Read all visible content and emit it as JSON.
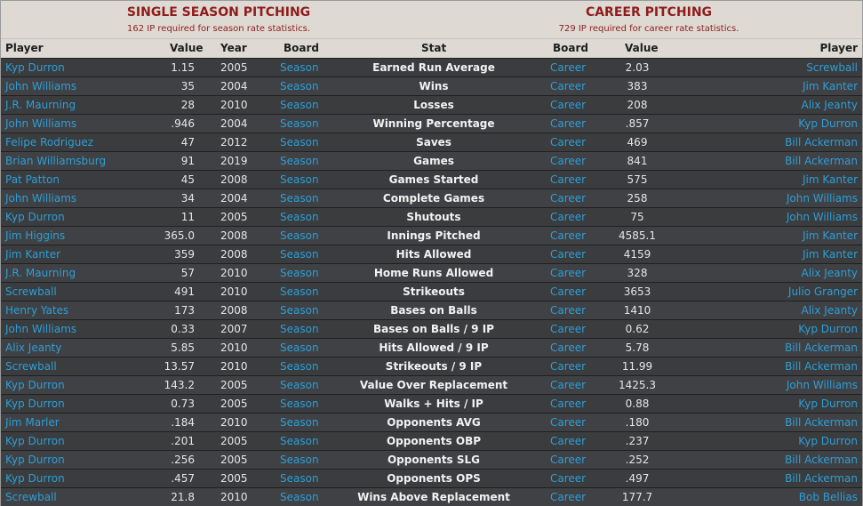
{
  "single_season": {
    "title": "SINGLE SEASON PITCHING",
    "subtitle": "162 IP required for season rate statistics."
  },
  "career": {
    "title": "CAREER PITCHING",
    "subtitle": "729 IP required for career rate statistics."
  },
  "columns": {
    "player": "Player",
    "value": "Value",
    "year": "Year",
    "board": "Board",
    "stat": "Stat",
    "career_board": "Board",
    "career_value": "Value",
    "career_player": "Player"
  },
  "colors": {
    "link": "#2b9fd8",
    "banner_bg": "#dedad3",
    "banner_text": "#8e1c1c",
    "row_bg": "#3b3c3e"
  },
  "rows": [
    {
      "player": "Kyp Durron",
      "value": "1.15",
      "year": "2005",
      "board": "Season",
      "stat": "Earned Run Average",
      "career_board": "Career",
      "career_value": "2.03",
      "career_player": "Screwball"
    },
    {
      "player": "John Williams",
      "value": "35",
      "year": "2004",
      "board": "Season",
      "stat": "Wins",
      "career_board": "Career",
      "career_value": "383",
      "career_player": "Jim Kanter"
    },
    {
      "player": "J.R. Maurning",
      "value": "28",
      "year": "2010",
      "board": "Season",
      "stat": "Losses",
      "career_board": "Career",
      "career_value": "208",
      "career_player": "Alix Jeanty"
    },
    {
      "player": "John Williams",
      "value": ".946",
      "year": "2004",
      "board": "Season",
      "stat": "Winning Percentage",
      "career_board": "Career",
      "career_value": ".857",
      "career_player": "Kyp Durron"
    },
    {
      "player": "Felipe Rodriguez",
      "value": "47",
      "year": "2012",
      "board": "Season",
      "stat": "Saves",
      "career_board": "Career",
      "career_value": "469",
      "career_player": "Bill Ackerman"
    },
    {
      "player": "Brian Williamsburg",
      "value": "91",
      "year": "2019",
      "board": "Season",
      "stat": "Games",
      "career_board": "Career",
      "career_value": "841",
      "career_player": "Bill Ackerman"
    },
    {
      "player": "Pat Patton",
      "value": "45",
      "year": "2008",
      "board": "Season",
      "stat": "Games Started",
      "career_board": "Career",
      "career_value": "575",
      "career_player": "Jim Kanter"
    },
    {
      "player": "John Williams",
      "value": "34",
      "year": "2004",
      "board": "Season",
      "stat": "Complete Games",
      "career_board": "Career",
      "career_value": "258",
      "career_player": "John Williams"
    },
    {
      "player": "Kyp Durron",
      "value": "11",
      "year": "2005",
      "board": "Season",
      "stat": "Shutouts",
      "career_board": "Career",
      "career_value": "75",
      "career_player": "John Williams"
    },
    {
      "player": "Jim Higgins",
      "value": "365.0",
      "year": "2008",
      "board": "Season",
      "stat": "Innings Pitched",
      "career_board": "Career",
      "career_value": "4585.1",
      "career_player": "Jim Kanter"
    },
    {
      "player": "Jim Kanter",
      "value": "359",
      "year": "2008",
      "board": "Season",
      "stat": "Hits Allowed",
      "career_board": "Career",
      "career_value": "4159",
      "career_player": "Jim Kanter"
    },
    {
      "player": "J.R. Maurning",
      "value": "57",
      "year": "2010",
      "board": "Season",
      "stat": "Home Runs Allowed",
      "career_board": "Career",
      "career_value": "328",
      "career_player": "Alix Jeanty"
    },
    {
      "player": "Screwball",
      "value": "491",
      "year": "2010",
      "board": "Season",
      "stat": "Strikeouts",
      "career_board": "Career",
      "career_value": "3653",
      "career_player": "Julio Granger"
    },
    {
      "player": "Henry Yates",
      "value": "173",
      "year": "2008",
      "board": "Season",
      "stat": "Bases on Balls",
      "career_board": "Career",
      "career_value": "1410",
      "career_player": "Alix Jeanty"
    },
    {
      "player": "John Williams",
      "value": "0.33",
      "year": "2007",
      "board": "Season",
      "stat": "Bases on Balls / 9 IP",
      "career_board": "Career",
      "career_value": "0.62",
      "career_player": "Kyp Durron"
    },
    {
      "player": "Alix Jeanty",
      "value": "5.85",
      "year": "2010",
      "board": "Season",
      "stat": "Hits Allowed / 9 IP",
      "career_board": "Career",
      "career_value": "5.78",
      "career_player": "Bill Ackerman"
    },
    {
      "player": "Screwball",
      "value": "13.57",
      "year": "2010",
      "board": "Season",
      "stat": "Strikeouts / 9 IP",
      "career_board": "Career",
      "career_value": "11.99",
      "career_player": "Bill Ackerman"
    },
    {
      "player": "Kyp Durron",
      "value": "143.2",
      "year": "2005",
      "board": "Season",
      "stat": "Value Over Replacement",
      "career_board": "Career",
      "career_value": "1425.3",
      "career_player": "John Williams"
    },
    {
      "player": "Kyp Durron",
      "value": "0.73",
      "year": "2005",
      "board": "Season",
      "stat": "Walks + Hits / IP",
      "career_board": "Career",
      "career_value": "0.88",
      "career_player": "Kyp Durron"
    },
    {
      "player": "Jim Marler",
      "value": ".184",
      "year": "2010",
      "board": "Season",
      "stat": "Opponents AVG",
      "career_board": "Career",
      "career_value": ".180",
      "career_player": "Bill Ackerman"
    },
    {
      "player": "Kyp Durron",
      "value": ".201",
      "year": "2005",
      "board": "Season",
      "stat": "Opponents OBP",
      "career_board": "Career",
      "career_value": ".237",
      "career_player": "Kyp Durron"
    },
    {
      "player": "Kyp Durron",
      "value": ".256",
      "year": "2005",
      "board": "Season",
      "stat": "Opponents SLG",
      "career_board": "Career",
      "career_value": ".252",
      "career_player": "Bill Ackerman"
    },
    {
      "player": "Kyp Durron",
      "value": ".457",
      "year": "2005",
      "board": "Season",
      "stat": "Opponents OPS",
      "career_board": "Career",
      "career_value": ".497",
      "career_player": "Bill Ackerman"
    },
    {
      "player": "Screwball",
      "value": "21.8",
      "year": "2010",
      "board": "Season",
      "stat": "Wins Above Replacement",
      "career_board": "Career",
      "career_value": "177.7",
      "career_player": "Bob Bellias"
    }
  ]
}
